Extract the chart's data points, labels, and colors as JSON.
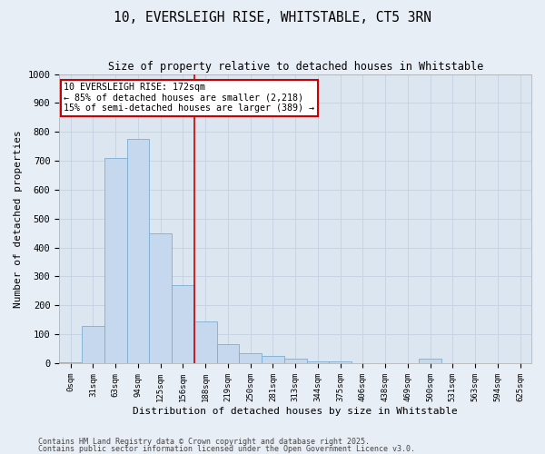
{
  "title": "10, EVERSLEIGH RISE, WHITSTABLE, CT5 3RN",
  "subtitle": "Size of property relative to detached houses in Whitstable",
  "xlabel": "Distribution of detached houses by size in Whitstable",
  "ylabel": "Number of detached properties",
  "categories": [
    "0sqm",
    "31sqm",
    "63sqm",
    "94sqm",
    "125sqm",
    "156sqm",
    "188sqm",
    "219sqm",
    "250sqm",
    "281sqm",
    "313sqm",
    "344sqm",
    "375sqm",
    "406sqm",
    "438sqm",
    "469sqm",
    "500sqm",
    "531sqm",
    "563sqm",
    "594sqm",
    "625sqm"
  ],
  "values": [
    2,
    130,
    710,
    775,
    450,
    270,
    145,
    65,
    35,
    25,
    15,
    5,
    5,
    0,
    0,
    0,
    15,
    0,
    0,
    0,
    0
  ],
  "bar_color": "#c5d8ed",
  "bar_edge_color": "#7aadd4",
  "vline_x_index": 5.5,
  "vline_color": "#cc0000",
  "annotation_text": "10 EVERSLEIGH RISE: 172sqm\n← 85% of detached houses are smaller (2,218)\n15% of semi-detached houses are larger (389) →",
  "annotation_box_facecolor": "#ffffff",
  "annotation_box_edgecolor": "#cc0000",
  "ylim": [
    0,
    1000
  ],
  "yticks": [
    0,
    100,
    200,
    300,
    400,
    500,
    600,
    700,
    800,
    900,
    1000
  ],
  "grid_color": "#c8d4e3",
  "bg_color": "#dce6f0",
  "fig_bg_color": "#e8eef5",
  "footer1": "Contains HM Land Registry data © Crown copyright and database right 2025.",
  "footer2": "Contains public sector information licensed under the Open Government Licence v3.0."
}
